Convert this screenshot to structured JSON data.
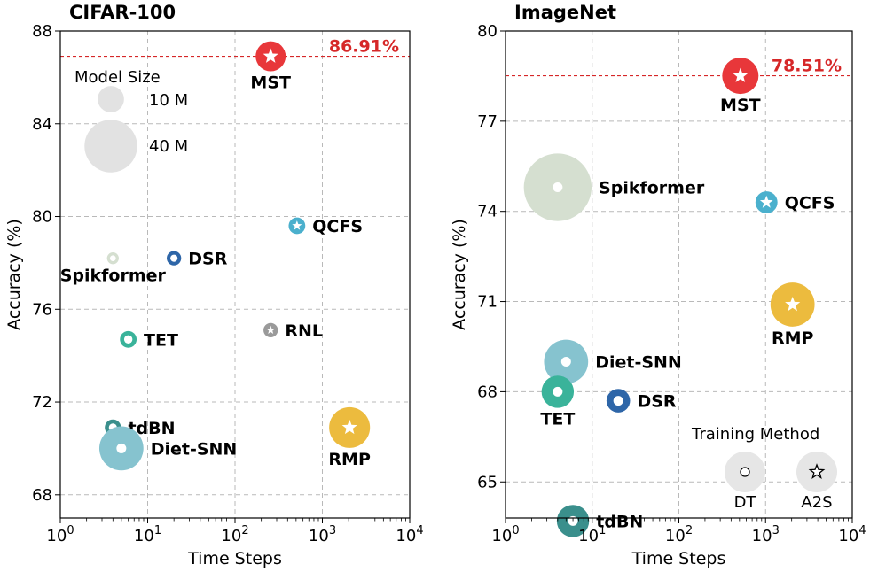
{
  "chart_data": [
    {
      "type": "scatter",
      "title": "CIFAR-100",
      "xlabel": "Time Steps",
      "ylabel": "Accuracy (%)",
      "xscale": "log",
      "xlim": [
        1,
        10000
      ],
      "ylim": [
        67,
        88
      ],
      "x_ticks": [
        {
          "value": 1,
          "base": "10",
          "exp": "0"
        },
        {
          "value": 10,
          "base": "10",
          "exp": "1"
        },
        {
          "value": 100,
          "base": "10",
          "exp": "2"
        },
        {
          "value": 1000,
          "base": "10",
          "exp": "3"
        },
        {
          "value": 10000,
          "base": "10",
          "exp": "4"
        }
      ],
      "y_ticks": [
        68,
        72,
        76,
        80,
        84,
        88
      ],
      "grid": true,
      "best_line": {
        "y": 86.91,
        "label": "86.91%"
      },
      "points": [
        {
          "name": "MST",
          "x": 256,
          "y": 86.91,
          "size_m": 13,
          "color": "#e8373a",
          "marker": "star",
          "label_pos": "below"
        },
        {
          "name": "QCFS",
          "x": 512,
          "y": 79.6,
          "size_m": 4,
          "color": "#4bb0cd",
          "marker": "star",
          "label_pos": "right"
        },
        {
          "name": "DSR",
          "x": 20,
          "y": 78.2,
          "size_m": 3,
          "color": "#2e66a8",
          "marker": "circle",
          "label_pos": "right"
        },
        {
          "name": "Spikformer",
          "x": 4,
          "y": 78.2,
          "size_m": 2,
          "color": "#d5dfd0",
          "marker": "circle",
          "label_pos": "below"
        },
        {
          "name": "RNL",
          "x": 256,
          "y": 75.1,
          "size_m": 3,
          "color": "#9a9a9a",
          "marker": "star",
          "label_pos": "right"
        },
        {
          "name": "TET",
          "x": 6,
          "y": 74.7,
          "size_m": 4,
          "color": "#3ab39a",
          "marker": "circle",
          "label_pos": "right"
        },
        {
          "name": "tdBN",
          "x": 4,
          "y": 70.9,
          "size_m": 3.8,
          "color": "#3a8f8c",
          "marker": "circle",
          "label_pos": "right"
        },
        {
          "name": "Diet-SNN",
          "x": 5,
          "y": 70.0,
          "size_m": 28,
          "color": "#86c3cf",
          "marker": "circle",
          "label_pos": "right"
        },
        {
          "name": "RMP",
          "x": 2048,
          "y": 70.9,
          "size_m": 24,
          "color": "#ecbb3e",
          "marker": "star",
          "label_pos": "below"
        }
      ],
      "legend": {
        "title": "Model Size",
        "entries": [
          {
            "label": "10 M",
            "size_m": 10
          },
          {
            "label": "40 M",
            "size_m": 40
          }
        ]
      }
    },
    {
      "type": "scatter",
      "title": "ImageNet",
      "xlabel": "Time Steps",
      "ylabel": "Accuracy (%)",
      "xscale": "log",
      "xlim": [
        1,
        10000
      ],
      "ylim": [
        63.8,
        80
      ],
      "x_ticks": [
        {
          "value": 1,
          "base": "10",
          "exp": "0"
        },
        {
          "value": 10,
          "base": "10",
          "exp": "1"
        },
        {
          "value": 100,
          "base": "10",
          "exp": "2"
        },
        {
          "value": 1000,
          "base": "10",
          "exp": "3"
        },
        {
          "value": 10000,
          "base": "10",
          "exp": "4"
        }
      ],
      "y_ticks": [
        65,
        68,
        71,
        74,
        77,
        80
      ],
      "grid": true,
      "best_line": {
        "y": 78.51,
        "label": "78.51%"
      },
      "points": [
        {
          "name": "MST",
          "x": 512,
          "y": 78.51,
          "size_m": 19,
          "color": "#e8373a",
          "marker": "star",
          "label_pos": "below"
        },
        {
          "name": "Spikformer",
          "x": 4,
          "y": 74.8,
          "size_m": 66,
          "color": "#d5dfd0",
          "marker": "circle",
          "label_pos": "right"
        },
        {
          "name": "QCFS",
          "x": 1024,
          "y": 74.3,
          "size_m": 7,
          "color": "#4bb0cd",
          "marker": "star",
          "label_pos": "right"
        },
        {
          "name": "RMP",
          "x": 2048,
          "y": 70.9,
          "size_m": 28,
          "color": "#ecbb3e",
          "marker": "star",
          "label_pos": "below"
        },
        {
          "name": "Diet-SNN",
          "x": 5,
          "y": 69.0,
          "size_m": 28,
          "color": "#86c3cf",
          "marker": "circle",
          "label_pos": "right"
        },
        {
          "name": "TET",
          "x": 4,
          "y": 68.0,
          "size_m": 15,
          "color": "#3ab39a",
          "marker": "circle",
          "label_pos": "below"
        },
        {
          "name": "DSR",
          "x": 20,
          "y": 67.7,
          "size_m": 8,
          "color": "#2e66a8",
          "marker": "circle",
          "label_pos": "right"
        },
        {
          "name": "tdBN",
          "x": 6,
          "y": 63.7,
          "size_m": 15,
          "color": "#3a8f8c",
          "marker": "circle",
          "label_pos": "right"
        }
      ],
      "legend": {
        "title": "Training Method",
        "entries": [
          {
            "label": "DT",
            "marker": "circle"
          },
          {
            "label": "A2S",
            "marker": "star"
          }
        ]
      }
    }
  ]
}
